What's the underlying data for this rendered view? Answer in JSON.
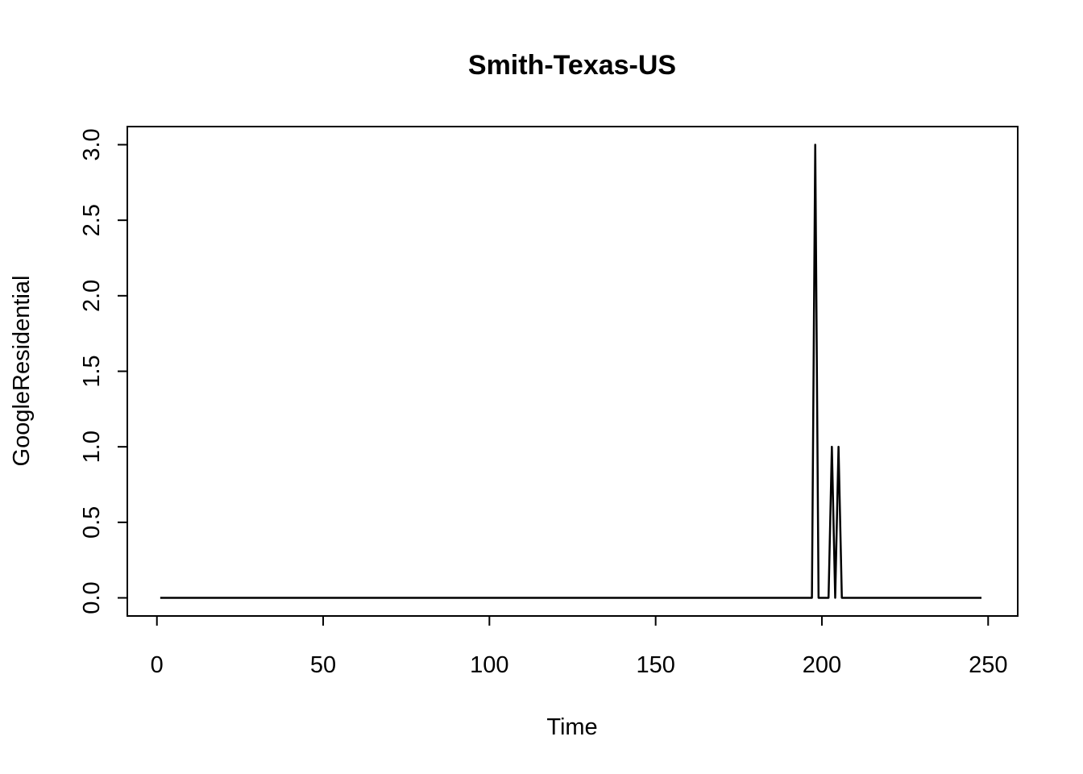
{
  "chart_data": {
    "type": "line",
    "title": "Smith-Texas-US",
    "xlabel": "Time",
    "ylabel": "GoogleResidential",
    "xlim": [
      -8.9,
      258.9
    ],
    "ylim": [
      -0.12,
      3.12
    ],
    "xticks": [
      0,
      50,
      100,
      150,
      200,
      250
    ],
    "yticks": [
      0.0,
      0.5,
      1.0,
      1.5,
      2.0,
      2.5,
      3.0
    ],
    "xtick_labels": [
      "0",
      "50",
      "100",
      "150",
      "200",
      "250"
    ],
    "ytick_labels": [
      "0.0",
      "0.5",
      "1.0",
      "1.5",
      "2.0",
      "2.5",
      "3.0"
    ],
    "grid": false,
    "legend": "none",
    "series": [
      {
        "x_start": 1,
        "x_end": 248,
        "baseline": 0,
        "nonzero_points": [
          {
            "x": 198,
            "y": 3
          },
          {
            "x": 203,
            "y": 1
          },
          {
            "x": 205,
            "y": 1
          }
        ]
      }
    ]
  }
}
